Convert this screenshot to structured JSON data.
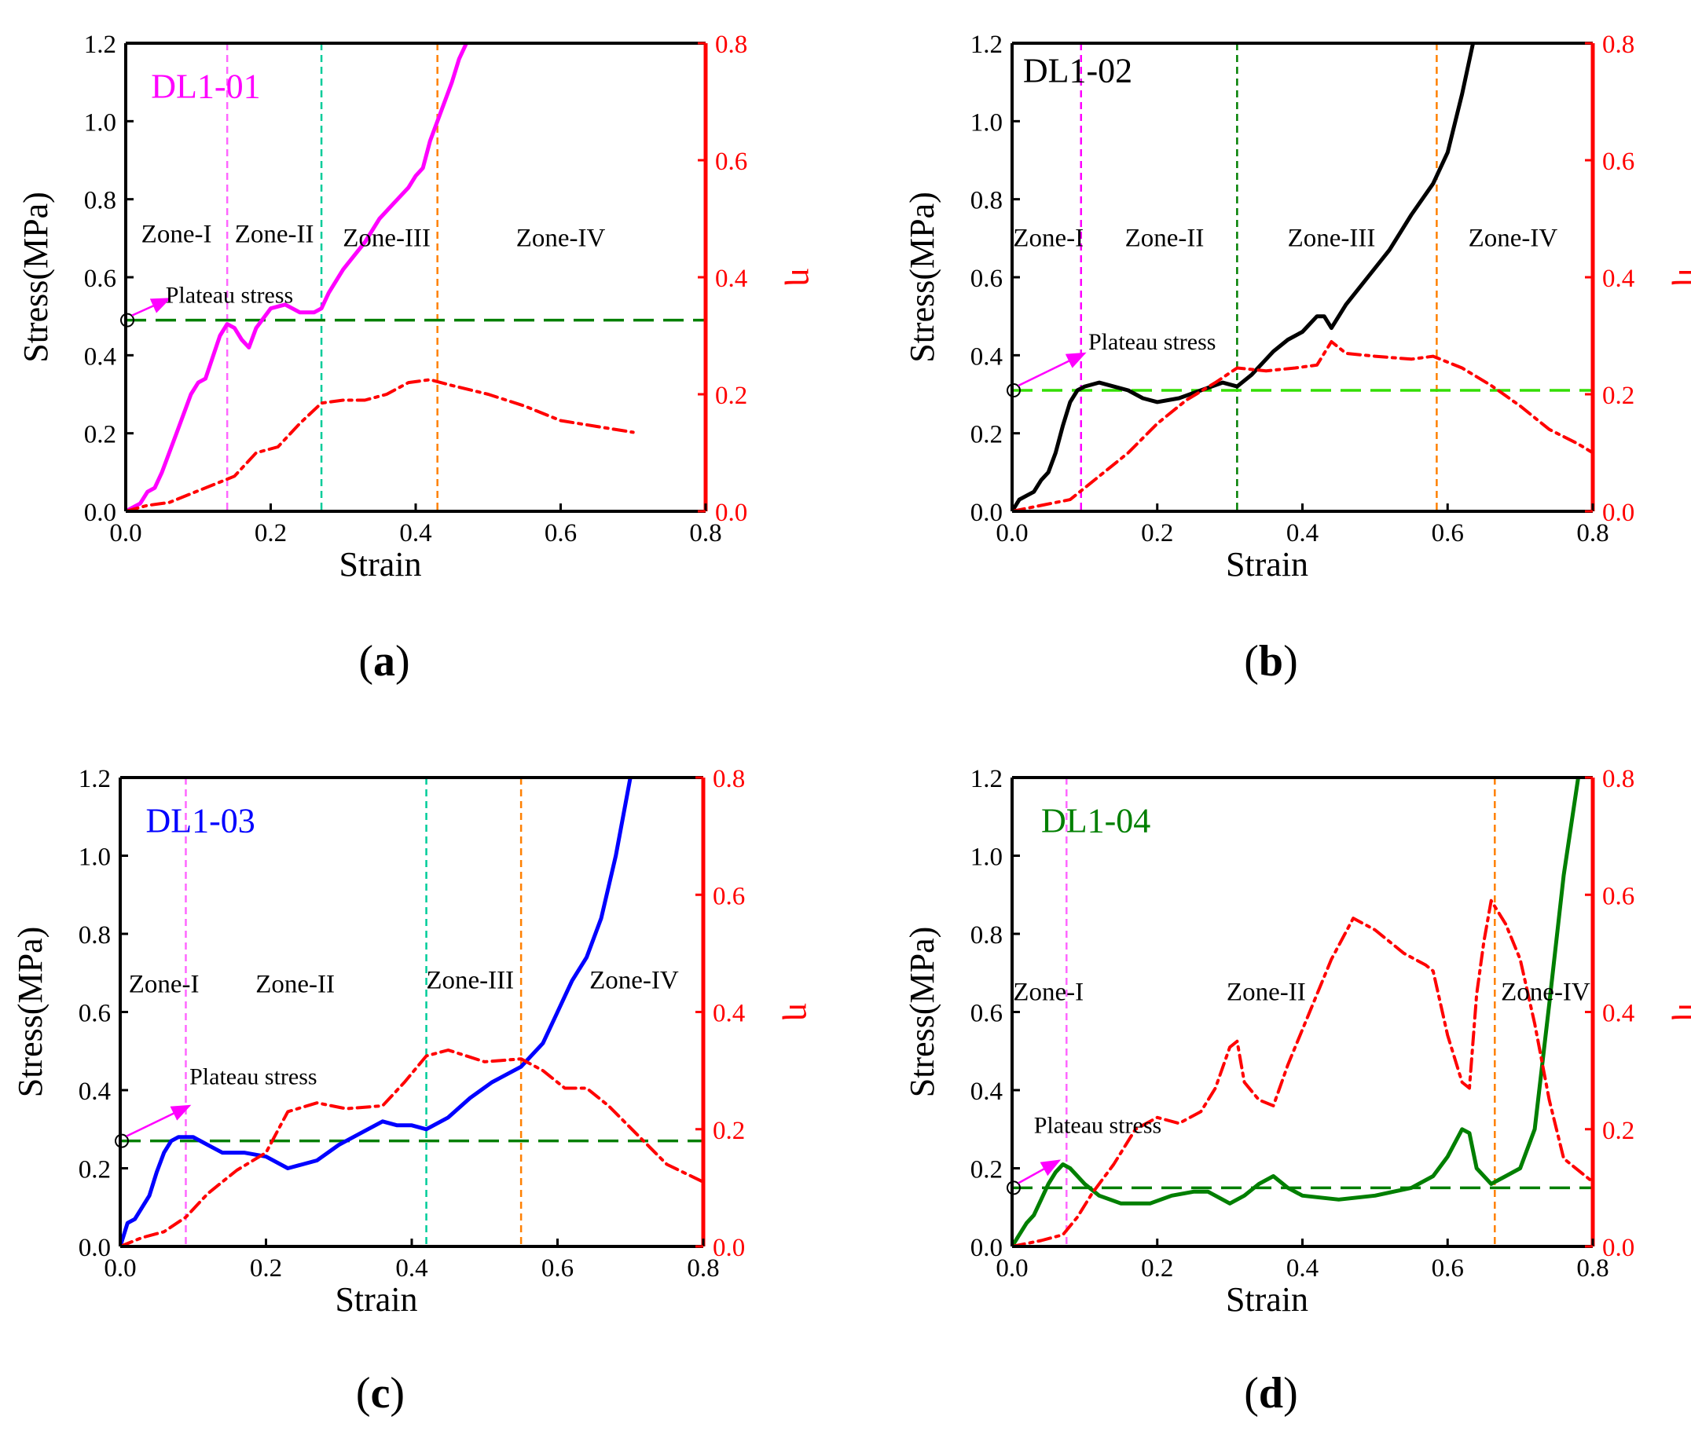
{
  "colors": {
    "axis_left": "#000000",
    "axis_right": "#ff0000",
    "eta_curve": "#ff0000",
    "plateau_arrow": "#ff00ff"
  },
  "chart_data": [
    {
      "type": "line",
      "caption": {
        "open": "(",
        "letter": "a",
        "close": ")"
      },
      "sample_label": "DL1-01",
      "sample_color": "#ff00ff",
      "xlabel": "Strain",
      "ylabel": "Stress(MPa)",
      "y2label": "η",
      "xlim": [
        0.0,
        0.8
      ],
      "ylim": [
        0.0,
        1.2
      ],
      "y2lim": [
        0.0,
        0.8
      ],
      "xticks": [
        "0.0",
        "0.2",
        "0.4",
        "0.6",
        "0.8"
      ],
      "yticks": [
        "0.0",
        "0.2",
        "0.4",
        "0.6",
        "0.8",
        "1.0",
        "1.2"
      ],
      "y2ticks": [
        "0.0",
        "0.2",
        "0.4",
        "0.6",
        "0.8"
      ],
      "plateau_stress": 0.49,
      "plateau_label": "Plateau stress",
      "plateau_line_color": "#007f00",
      "zone_lines": [
        {
          "x": 0.14,
          "color": "#ff66ff"
        },
        {
          "x": 0.27,
          "color": "#00cc99"
        },
        {
          "x": 0.43,
          "color": "#ff8000"
        }
      ],
      "zones": [
        {
          "label": "Zone-I",
          "x": 0.07,
          "y": 0.69
        },
        {
          "label": "Zone-II",
          "x": 0.205,
          "y": 0.69
        },
        {
          "label": "Zone-III",
          "x": 0.36,
          "y": 0.68
        },
        {
          "label": "Zone-IV",
          "x": 0.6,
          "y": 0.68
        }
      ],
      "series": [
        {
          "name": "Stress",
          "axis": "left",
          "color": "#ff00ff",
          "dash": "",
          "x": [
            0.0,
            0.02,
            0.03,
            0.04,
            0.05,
            0.07,
            0.09,
            0.1,
            0.11,
            0.13,
            0.14,
            0.15,
            0.16,
            0.17,
            0.18,
            0.2,
            0.22,
            0.24,
            0.26,
            0.27,
            0.28,
            0.3,
            0.33,
            0.35,
            0.37,
            0.39,
            0.4,
            0.41,
            0.42,
            0.43,
            0.44,
            0.45,
            0.46,
            0.47
          ],
          "y": [
            0.0,
            0.02,
            0.05,
            0.06,
            0.1,
            0.2,
            0.3,
            0.33,
            0.34,
            0.45,
            0.48,
            0.47,
            0.44,
            0.42,
            0.47,
            0.52,
            0.53,
            0.51,
            0.51,
            0.52,
            0.56,
            0.62,
            0.69,
            0.75,
            0.79,
            0.83,
            0.86,
            0.88,
            0.95,
            1.0,
            1.05,
            1.1,
            1.16,
            1.2
          ]
        },
        {
          "name": "η",
          "axis": "right",
          "color": "#ff0000",
          "dash": "16,7,4,7",
          "x": [
            0.0,
            0.03,
            0.06,
            0.09,
            0.12,
            0.15,
            0.18,
            0.21,
            0.24,
            0.27,
            0.3,
            0.33,
            0.36,
            0.39,
            0.42,
            0.45,
            0.5,
            0.55,
            0.6,
            0.65,
            0.7
          ],
          "y": [
            0.0,
            0.01,
            0.015,
            0.03,
            0.045,
            0.06,
            0.1,
            0.11,
            0.15,
            0.185,
            0.19,
            0.19,
            0.2,
            0.22,
            0.225,
            0.215,
            0.2,
            0.18,
            0.155,
            0.145,
            0.135
          ]
        }
      ]
    },
    {
      "type": "line",
      "caption": {
        "open": "(",
        "letter": "b",
        "close": ")"
      },
      "sample_label": "DL1-02",
      "sample_color": "#000000",
      "xlabel": "Strain",
      "ylabel": "Stress(MPa)",
      "y2label": "η",
      "xlim": [
        0.0,
        0.8
      ],
      "ylim": [
        0.0,
        1.2
      ],
      "y2lim": [
        0.0,
        0.8
      ],
      "xticks": [
        "0.0",
        "0.2",
        "0.4",
        "0.6",
        "0.8"
      ],
      "yticks": [
        "0.0",
        "0.2",
        "0.4",
        "0.6",
        "0.8",
        "1.0",
        "1.2"
      ],
      "y2ticks": [
        "0.0",
        "0.2",
        "0.4",
        "0.6",
        "0.8"
      ],
      "plateau_stress": 0.31,
      "plateau_label": "Plateau stress",
      "plateau_line_color": "#33dd00",
      "zone_lines": [
        {
          "x": 0.095,
          "color": "#ff00ff"
        },
        {
          "x": 0.31,
          "color": "#007f00"
        },
        {
          "x": 0.585,
          "color": "#ff8000"
        }
      ],
      "zones": [
        {
          "label": "Zone-I",
          "x": 0.05,
          "y": 0.68
        },
        {
          "label": "Zone-II",
          "x": 0.21,
          "y": 0.68
        },
        {
          "label": "Zone-III",
          "x": 0.44,
          "y": 0.68
        },
        {
          "label": "Zone-IV",
          "x": 0.69,
          "y": 0.68
        }
      ],
      "series": [
        {
          "name": "Stress",
          "axis": "left",
          "color": "#000000",
          "dash": "",
          "x": [
            0.0,
            0.01,
            0.02,
            0.03,
            0.04,
            0.05,
            0.06,
            0.07,
            0.08,
            0.09,
            0.1,
            0.12,
            0.14,
            0.16,
            0.18,
            0.2,
            0.23,
            0.26,
            0.29,
            0.31,
            0.33,
            0.36,
            0.38,
            0.4,
            0.42,
            0.43,
            0.44,
            0.46,
            0.49,
            0.52,
            0.55,
            0.58,
            0.6,
            0.62,
            0.635
          ],
          "y": [
            0.0,
            0.03,
            0.04,
            0.05,
            0.08,
            0.1,
            0.15,
            0.22,
            0.28,
            0.31,
            0.32,
            0.33,
            0.32,
            0.31,
            0.29,
            0.28,
            0.29,
            0.31,
            0.33,
            0.32,
            0.35,
            0.41,
            0.44,
            0.46,
            0.5,
            0.5,
            0.47,
            0.53,
            0.6,
            0.67,
            0.76,
            0.84,
            0.92,
            1.07,
            1.2
          ]
        },
        {
          "name": "η",
          "axis": "right",
          "color": "#ff0000",
          "dash": "16,7,4,7",
          "x": [
            0.0,
            0.04,
            0.08,
            0.1,
            0.13,
            0.16,
            0.2,
            0.24,
            0.28,
            0.31,
            0.35,
            0.39,
            0.42,
            0.44,
            0.46,
            0.5,
            0.55,
            0.58,
            0.62,
            0.66,
            0.7,
            0.74,
            0.78,
            0.8
          ],
          "y": [
            0.0,
            0.01,
            0.02,
            0.04,
            0.07,
            0.1,
            0.15,
            0.19,
            0.22,
            0.245,
            0.24,
            0.245,
            0.25,
            0.29,
            0.27,
            0.265,
            0.26,
            0.265,
            0.245,
            0.215,
            0.18,
            0.14,
            0.115,
            0.1
          ]
        }
      ]
    },
    {
      "type": "line",
      "caption": {
        "open": "(",
        "letter": "c",
        "close": ")"
      },
      "sample_label": "DL1-03",
      "sample_color": "#0000ff",
      "xlabel": "Strain",
      "ylabel": "Stress(MPa)",
      "y2label": "η",
      "xlim": [
        0.0,
        0.8
      ],
      "ylim": [
        0.0,
        1.2
      ],
      "y2lim": [
        0.0,
        0.8
      ],
      "xticks": [
        "0.0",
        "0.2",
        "0.4",
        "0.6",
        "0.8"
      ],
      "yticks": [
        "0.0",
        "0.2",
        "0.4",
        "0.6",
        "0.8",
        "1.0",
        "1.2"
      ],
      "y2ticks": [
        "0.0",
        "0.2",
        "0.4",
        "0.6",
        "0.8"
      ],
      "plateau_stress": 0.27,
      "plateau_label": "Plateau stress",
      "plateau_line_color": "#007f00",
      "zone_lines": [
        {
          "x": 0.09,
          "color": "#ff66ff"
        },
        {
          "x": 0.42,
          "color": "#00cc99"
        },
        {
          "x": 0.55,
          "color": "#ff8000"
        }
      ],
      "zones": [
        {
          "label": "Zone-I",
          "x": 0.06,
          "y": 0.65
        },
        {
          "label": "Zone-II",
          "x": 0.24,
          "y": 0.65
        },
        {
          "label": "Zone-III",
          "x": 0.48,
          "y": 0.66
        },
        {
          "label": "Zone-IV",
          "x": 0.705,
          "y": 0.66
        }
      ],
      "series": [
        {
          "name": "Stress",
          "axis": "left",
          "color": "#0000ff",
          "dash": "",
          "x": [
            0.0,
            0.01,
            0.02,
            0.03,
            0.04,
            0.05,
            0.06,
            0.07,
            0.08,
            0.1,
            0.12,
            0.14,
            0.17,
            0.2,
            0.23,
            0.27,
            0.3,
            0.33,
            0.36,
            0.38,
            0.4,
            0.42,
            0.45,
            0.48,
            0.51,
            0.55,
            0.58,
            0.6,
            0.62,
            0.64,
            0.66,
            0.68,
            0.7
          ],
          "y": [
            0.0,
            0.06,
            0.07,
            0.1,
            0.13,
            0.19,
            0.24,
            0.27,
            0.28,
            0.28,
            0.26,
            0.24,
            0.24,
            0.23,
            0.2,
            0.22,
            0.26,
            0.29,
            0.32,
            0.31,
            0.31,
            0.3,
            0.33,
            0.38,
            0.42,
            0.46,
            0.52,
            0.6,
            0.68,
            0.74,
            0.84,
            1.0,
            1.2
          ]
        },
        {
          "name": "η",
          "axis": "right",
          "color": "#ff0000",
          "dash": "16,7,4,7",
          "x": [
            0.0,
            0.03,
            0.06,
            0.09,
            0.12,
            0.16,
            0.2,
            0.23,
            0.27,
            0.31,
            0.36,
            0.39,
            0.42,
            0.45,
            0.5,
            0.55,
            0.58,
            0.61,
            0.64,
            0.67,
            0.71,
            0.75,
            0.8
          ],
          "y": [
            0.0,
            0.015,
            0.025,
            0.05,
            0.09,
            0.13,
            0.16,
            0.23,
            0.245,
            0.235,
            0.24,
            0.28,
            0.325,
            0.335,
            0.315,
            0.32,
            0.3,
            0.27,
            0.27,
            0.24,
            0.19,
            0.14,
            0.11
          ]
        }
      ]
    },
    {
      "type": "line",
      "caption": {
        "open": "(",
        "letter": "d",
        "close": ")"
      },
      "sample_label": "DL1-04",
      "sample_color": "#007f00",
      "xlabel": "Strain",
      "ylabel": "Stress(MPa)",
      "y2label": "η",
      "xlim": [
        0.0,
        0.8
      ],
      "ylim": [
        0.0,
        1.2
      ],
      "y2lim": [
        0.0,
        0.8
      ],
      "xticks": [
        "0.0",
        "0.2",
        "0.4",
        "0.6",
        "0.8"
      ],
      "yticks": [
        "0.0",
        "0.2",
        "0.4",
        "0.6",
        "0.8",
        "1.0",
        "1.2"
      ],
      "y2ticks": [
        "0.0",
        "0.2",
        "0.4",
        "0.6",
        "0.8"
      ],
      "plateau_stress": 0.15,
      "plateau_label": "Plateau stress",
      "plateau_line_color": "#007f00",
      "zone_lines": [
        {
          "x": 0.075,
          "color": "#ff66ff"
        },
        {
          "x": 0.665,
          "color": "#ff8000"
        }
      ],
      "zones": [
        {
          "label": "Zone-I",
          "x": 0.05,
          "y": 0.63
        },
        {
          "label": "Zone-II",
          "x": 0.35,
          "y": 0.63
        },
        {
          "label": "Zone-IV",
          "x": 0.735,
          "y": 0.63
        }
      ],
      "series": [
        {
          "name": "Stress",
          "axis": "left",
          "color": "#007f00",
          "dash": "",
          "x": [
            0.0,
            0.01,
            0.02,
            0.03,
            0.04,
            0.05,
            0.06,
            0.07,
            0.08,
            0.1,
            0.12,
            0.15,
            0.19,
            0.22,
            0.25,
            0.27,
            0.3,
            0.32,
            0.34,
            0.36,
            0.38,
            0.4,
            0.45,
            0.5,
            0.55,
            0.58,
            0.6,
            0.62,
            0.63,
            0.64,
            0.66,
            0.68,
            0.7,
            0.72,
            0.74,
            0.76,
            0.78
          ],
          "y": [
            0.0,
            0.03,
            0.06,
            0.08,
            0.12,
            0.16,
            0.19,
            0.21,
            0.2,
            0.16,
            0.13,
            0.11,
            0.11,
            0.13,
            0.14,
            0.14,
            0.11,
            0.13,
            0.16,
            0.18,
            0.15,
            0.13,
            0.12,
            0.13,
            0.15,
            0.18,
            0.23,
            0.3,
            0.29,
            0.2,
            0.16,
            0.18,
            0.2,
            0.3,
            0.62,
            0.95,
            1.2
          ]
        },
        {
          "name": "η",
          "axis": "right",
          "color": "#ff0000",
          "dash": "16,7,4,7",
          "x": [
            0.0,
            0.04,
            0.07,
            0.09,
            0.11,
            0.14,
            0.17,
            0.2,
            0.23,
            0.26,
            0.28,
            0.3,
            0.31,
            0.32,
            0.34,
            0.36,
            0.38,
            0.41,
            0.44,
            0.47,
            0.5,
            0.54,
            0.57,
            0.58,
            0.6,
            0.62,
            0.63,
            0.64,
            0.65,
            0.66,
            0.68,
            0.7,
            0.72,
            0.74,
            0.76,
            0.8
          ],
          "y": [
            0.0,
            0.01,
            0.02,
            0.05,
            0.09,
            0.14,
            0.2,
            0.22,
            0.21,
            0.23,
            0.27,
            0.34,
            0.35,
            0.28,
            0.25,
            0.24,
            0.31,
            0.4,
            0.49,
            0.56,
            0.54,
            0.5,
            0.48,
            0.47,
            0.36,
            0.28,
            0.27,
            0.43,
            0.52,
            0.59,
            0.55,
            0.49,
            0.38,
            0.25,
            0.15,
            0.11
          ]
        }
      ]
    }
  ]
}
